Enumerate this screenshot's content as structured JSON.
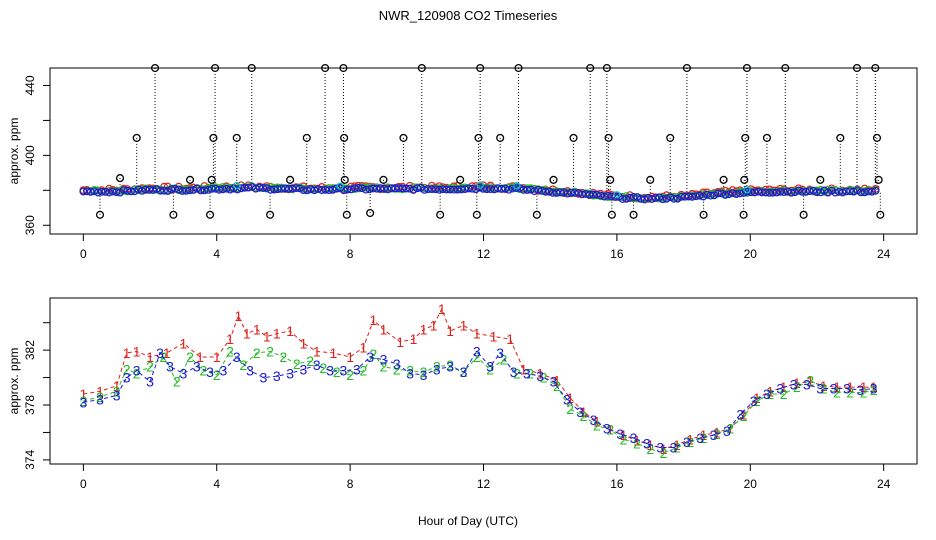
{
  "title": "NWR_120908  CO2 Timeseries",
  "xlabel": "Hour of Day (UTC)",
  "colors": {
    "series1": "#e0201a",
    "series2": "#22bb22",
    "series3": "#1a1ad6",
    "outlier": "#000000",
    "cyan": "#00c8c8",
    "frame": "#000000"
  },
  "chart_data": [
    {
      "id": "top",
      "type": "scatter",
      "title": "",
      "ylabel": "approx. ppm",
      "xlim": [
        -1.0,
        25.0
      ],
      "ylim": [
        355,
        450
      ],
      "xticks": [
        0,
        4,
        8,
        12,
        16,
        20,
        24
      ],
      "yticks": [
        360,
        400,
        440
      ],
      "ytick_labels": [
        "360",
        "400",
        "440"
      ],
      "yticks_minor": [
        380,
        420
      ],
      "baseline_points": [
        [
          0.0,
          379.5
        ],
        [
          1.0,
          379.5
        ],
        [
          2.0,
          380.5
        ],
        [
          3.0,
          380.5
        ],
        [
          4.0,
          381
        ],
        [
          5.0,
          381.5
        ],
        [
          6.0,
          381
        ],
        [
          7.0,
          380.5
        ],
        [
          8.0,
          381
        ],
        [
          9.0,
          381
        ],
        [
          10.0,
          381
        ],
        [
          11.0,
          381
        ],
        [
          12.0,
          381.5
        ],
        [
          13.0,
          381
        ],
        [
          14.0,
          379.5
        ],
        [
          15.0,
          378
        ],
        [
          16.0,
          376
        ],
        [
          17.0,
          375.5
        ],
        [
          18.0,
          376
        ],
        [
          19.0,
          378
        ],
        [
          20.0,
          379
        ],
        [
          21.0,
          379.5
        ],
        [
          22.0,
          379.5
        ],
        [
          23.0,
          379.5
        ],
        [
          23.8,
          379.5
        ]
      ],
      "outliers": [
        {
          "x": 0.5,
          "y": 366
        },
        {
          "x": 1.1,
          "y": 387
        },
        {
          "x": 1.6,
          "y": 410
        },
        {
          "x": 2.15,
          "y": 450
        },
        {
          "x": 2.7,
          "y": 366
        },
        {
          "x": 3.2,
          "y": 386
        },
        {
          "x": 3.8,
          "y": 366
        },
        {
          "x": 3.85,
          "y": 386
        },
        {
          "x": 3.9,
          "y": 410
        },
        {
          "x": 3.95,
          "y": 450
        },
        {
          "x": 4.6,
          "y": 410
        },
        {
          "x": 5.05,
          "y": 450
        },
        {
          "x": 5.6,
          "y": 366
        },
        {
          "x": 6.2,
          "y": 386
        },
        {
          "x": 6.7,
          "y": 410
        },
        {
          "x": 7.25,
          "y": 450
        },
        {
          "x": 7.8,
          "y": 450
        },
        {
          "x": 7.82,
          "y": 410
        },
        {
          "x": 7.84,
          "y": 386
        },
        {
          "x": 7.9,
          "y": 366
        },
        {
          "x": 8.6,
          "y": 367
        },
        {
          "x": 9.0,
          "y": 386
        },
        {
          "x": 9.6,
          "y": 410
        },
        {
          "x": 10.15,
          "y": 450
        },
        {
          "x": 10.7,
          "y": 366
        },
        {
          "x": 11.3,
          "y": 386
        },
        {
          "x": 11.8,
          "y": 366
        },
        {
          "x": 11.85,
          "y": 410
        },
        {
          "x": 11.9,
          "y": 450
        },
        {
          "x": 12.5,
          "y": 410
        },
        {
          "x": 13.05,
          "y": 450
        },
        {
          "x": 13.6,
          "y": 366
        },
        {
          "x": 14.1,
          "y": 386
        },
        {
          "x": 14.7,
          "y": 410
        },
        {
          "x": 15.2,
          "y": 450
        },
        {
          "x": 15.7,
          "y": 450
        },
        {
          "x": 15.75,
          "y": 410
        },
        {
          "x": 15.8,
          "y": 386
        },
        {
          "x": 15.85,
          "y": 366
        },
        {
          "x": 16.5,
          "y": 366
        },
        {
          "x": 17.0,
          "y": 386
        },
        {
          "x": 17.6,
          "y": 410
        },
        {
          "x": 18.1,
          "y": 450
        },
        {
          "x": 18.6,
          "y": 366
        },
        {
          "x": 19.2,
          "y": 386
        },
        {
          "x": 19.8,
          "y": 366
        },
        {
          "x": 19.82,
          "y": 386
        },
        {
          "x": 19.85,
          "y": 410
        },
        {
          "x": 19.9,
          "y": 450
        },
        {
          "x": 20.5,
          "y": 410
        },
        {
          "x": 21.05,
          "y": 450
        },
        {
          "x": 21.6,
          "y": 366
        },
        {
          "x": 22.1,
          "y": 386
        },
        {
          "x": 22.7,
          "y": 410
        },
        {
          "x": 23.2,
          "y": 450
        },
        {
          "x": 23.75,
          "y": 450
        },
        {
          "x": 23.8,
          "y": 410
        },
        {
          "x": 23.85,
          "y": 386
        },
        {
          "x": 23.9,
          "y": 366
        }
      ],
      "point_marker": "o"
    },
    {
      "id": "bottom",
      "type": "line",
      "title": "",
      "ylabel": "approx. ppm",
      "xlim": [
        -1.0,
        25.0
      ],
      "ylim": [
        373.7,
        385.8
      ],
      "xticks": [
        0,
        4,
        8,
        12,
        16,
        20,
        24
      ],
      "yticks": [
        374,
        378,
        382
      ],
      "ytick_labels": [
        "374",
        "378",
        "382"
      ],
      "yticks_minor": [
        376,
        380,
        384
      ],
      "series": [
        {
          "name": "1",
          "marker": "1",
          "color_key": "series1",
          "points": [
            [
              0,
              378.8
            ],
            [
              0.5,
              379.0
            ],
            [
              1.0,
              379.4
            ],
            [
              1.3,
              381.8
            ],
            [
              1.6,
              381.9
            ],
            [
              2.0,
              381.5
            ],
            [
              2.5,
              381.8
            ],
            [
              3.0,
              382.5
            ],
            [
              3.5,
              381.5
            ],
            [
              4.0,
              381.5
            ],
            [
              4.4,
              382.8
            ],
            [
              4.65,
              384.5
            ],
            [
              4.9,
              383.2
            ],
            [
              5.2,
              383.5
            ],
            [
              5.5,
              383.0
            ],
            [
              5.8,
              383.2
            ],
            [
              6.2,
              383.4
            ],
            [
              6.6,
              382.5
            ],
            [
              7.0,
              381.9
            ],
            [
              7.5,
              381.8
            ],
            [
              8.0,
              381.5
            ],
            [
              8.4,
              382.2
            ],
            [
              8.7,
              384.2
            ],
            [
              9.0,
              383.5
            ],
            [
              9.5,
              382.6
            ],
            [
              9.9,
              382.8
            ],
            [
              10.2,
              383.5
            ],
            [
              10.5,
              383.8
            ],
            [
              10.75,
              385.0
            ],
            [
              11.0,
              383.4
            ],
            [
              11.4,
              383.8
            ],
            [
              11.8,
              383.2
            ],
            [
              12.3,
              383.0
            ],
            [
              12.8,
              382.8
            ],
            [
              13.2,
              380.6
            ],
            [
              13.7,
              380.3
            ],
            [
              14.2,
              379.8
            ],
            [
              14.6,
              378.5
            ],
            [
              15.0,
              377.5
            ],
            [
              15.4,
              376.8
            ],
            [
              15.8,
              376.2
            ],
            [
              16.2,
              375.8
            ],
            [
              16.6,
              375.4
            ],
            [
              17.0,
              375.1
            ],
            [
              17.4,
              374.8
            ],
            [
              17.8,
              375.1
            ],
            [
              18.2,
              375.5
            ],
            [
              18.6,
              375.8
            ],
            [
              19.0,
              376.0
            ],
            [
              19.4,
              376.3
            ],
            [
              19.8,
              377.3
            ],
            [
              20.2,
              378.5
            ],
            [
              20.6,
              379.0
            ],
            [
              21.0,
              379.3
            ],
            [
              21.4,
              379.6
            ],
            [
              21.8,
              379.7
            ],
            [
              22.2,
              379.4
            ],
            [
              22.6,
              379.3
            ],
            [
              23.0,
              379.3
            ],
            [
              23.4,
              379.3
            ],
            [
              23.7,
              379.3
            ]
          ]
        },
        {
          "name": "2",
          "marker": "2",
          "color_key": "series2",
          "points": [
            [
              0,
              378.3
            ],
            [
              0.5,
              378.6
            ],
            [
              1.0,
              379.0
            ],
            [
              1.3,
              380.6
            ],
            [
              1.6,
              380.3
            ],
            [
              2.0,
              380.8
            ],
            [
              2.4,
              381.5
            ],
            [
              2.8,
              379.7
            ],
            [
              3.2,
              381.5
            ],
            [
              3.6,
              380.5
            ],
            [
              4.0,
              380.2
            ],
            [
              4.4,
              381.9
            ],
            [
              4.8,
              380.9
            ],
            [
              5.2,
              381.8
            ],
            [
              5.6,
              381.9
            ],
            [
              6.0,
              381.5
            ],
            [
              6.4,
              381.0
            ],
            [
              6.8,
              381.2
            ],
            [
              7.2,
              380.7
            ],
            [
              7.6,
              380.4
            ],
            [
              8.0,
              380.2
            ],
            [
              8.4,
              380.5
            ],
            [
              8.7,
              381.7
            ],
            [
              9.0,
              380.8
            ],
            [
              9.4,
              380.6
            ],
            [
              9.8,
              380.5
            ],
            [
              10.2,
              380.4
            ],
            [
              10.6,
              380.8
            ],
            [
              11.0,
              380.9
            ],
            [
              11.4,
              380.4
            ],
            [
              11.8,
              381.5
            ],
            [
              12.2,
              380.6
            ],
            [
              12.6,
              381.3
            ],
            [
              13.0,
              380.3
            ],
            [
              13.4,
              380.3
            ],
            [
              13.8,
              380.0
            ],
            [
              14.2,
              379.4
            ],
            [
              14.6,
              377.7
            ],
            [
              15.0,
              377.2
            ],
            [
              15.4,
              376.5
            ],
            [
              15.8,
              376.2
            ],
            [
              16.2,
              375.5
            ],
            [
              16.6,
              375.2
            ],
            [
              17.0,
              374.8
            ],
            [
              17.4,
              374.5
            ],
            [
              17.8,
              374.9
            ],
            [
              18.2,
              375.3
            ],
            [
              18.6,
              375.6
            ],
            [
              19.0,
              375.9
            ],
            [
              19.4,
              376.3
            ],
            [
              19.8,
              377.2
            ],
            [
              20.2,
              378.3
            ],
            [
              20.6,
              378.8
            ],
            [
              21.0,
              378.8
            ],
            [
              21.4,
              379.3
            ],
            [
              21.8,
              379.8
            ],
            [
              22.2,
              379.2
            ],
            [
              22.6,
              378.9
            ],
            [
              23.0,
              378.9
            ],
            [
              23.4,
              378.9
            ],
            [
              23.7,
              379.1
            ]
          ]
        },
        {
          "name": "3",
          "marker": "3",
          "color_key": "series3",
          "points": [
            [
              0,
              378.2
            ],
            [
              0.5,
              378.4
            ],
            [
              1.0,
              378.7
            ],
            [
              1.3,
              380.0
            ],
            [
              1.6,
              380.5
            ],
            [
              2.0,
              379.7
            ],
            [
              2.3,
              381.8
            ],
            [
              2.6,
              380.8
            ],
            [
              3.0,
              380.3
            ],
            [
              3.4,
              380.8
            ],
            [
              3.8,
              380.4
            ],
            [
              4.2,
              380.5
            ],
            [
              4.6,
              381.5
            ],
            [
              5.0,
              380.5
            ],
            [
              5.4,
              380.0
            ],
            [
              5.8,
              380.1
            ],
            [
              6.2,
              380.3
            ],
            [
              6.6,
              380.6
            ],
            [
              7.0,
              380.9
            ],
            [
              7.4,
              380.5
            ],
            [
              7.8,
              380.5
            ],
            [
              8.2,
              380.6
            ],
            [
              8.6,
              381.5
            ],
            [
              9.0,
              381.3
            ],
            [
              9.4,
              381.0
            ],
            [
              9.8,
              380.3
            ],
            [
              10.2,
              380.2
            ],
            [
              10.6,
              380.6
            ],
            [
              11.0,
              380.8
            ],
            [
              11.4,
              380.4
            ],
            [
              11.8,
              381.9
            ],
            [
              12.2,
              380.8
            ],
            [
              12.5,
              381.8
            ],
            [
              12.9,
              380.4
            ],
            [
              13.3,
              380.3
            ],
            [
              13.7,
              380.1
            ],
            [
              14.1,
              379.7
            ],
            [
              14.5,
              378.4
            ],
            [
              14.9,
              377.5
            ],
            [
              15.3,
              376.9
            ],
            [
              15.7,
              376.3
            ],
            [
              16.1,
              375.9
            ],
            [
              16.5,
              375.6
            ],
            [
              16.9,
              375.2
            ],
            [
              17.3,
              374.9
            ],
            [
              17.7,
              374.9
            ],
            [
              18.1,
              375.3
            ],
            [
              18.5,
              375.6
            ],
            [
              18.9,
              375.8
            ],
            [
              19.3,
              376.1
            ],
            [
              19.7,
              377.3
            ],
            [
              20.1,
              378.3
            ],
            [
              20.5,
              378.8
            ],
            [
              20.9,
              379.2
            ],
            [
              21.3,
              379.5
            ],
            [
              21.7,
              379.5
            ],
            [
              22.1,
              379.2
            ],
            [
              22.5,
              379.2
            ],
            [
              22.9,
              379.2
            ],
            [
              23.3,
              379.1
            ],
            [
              23.7,
              379.2
            ]
          ]
        }
      ]
    }
  ]
}
